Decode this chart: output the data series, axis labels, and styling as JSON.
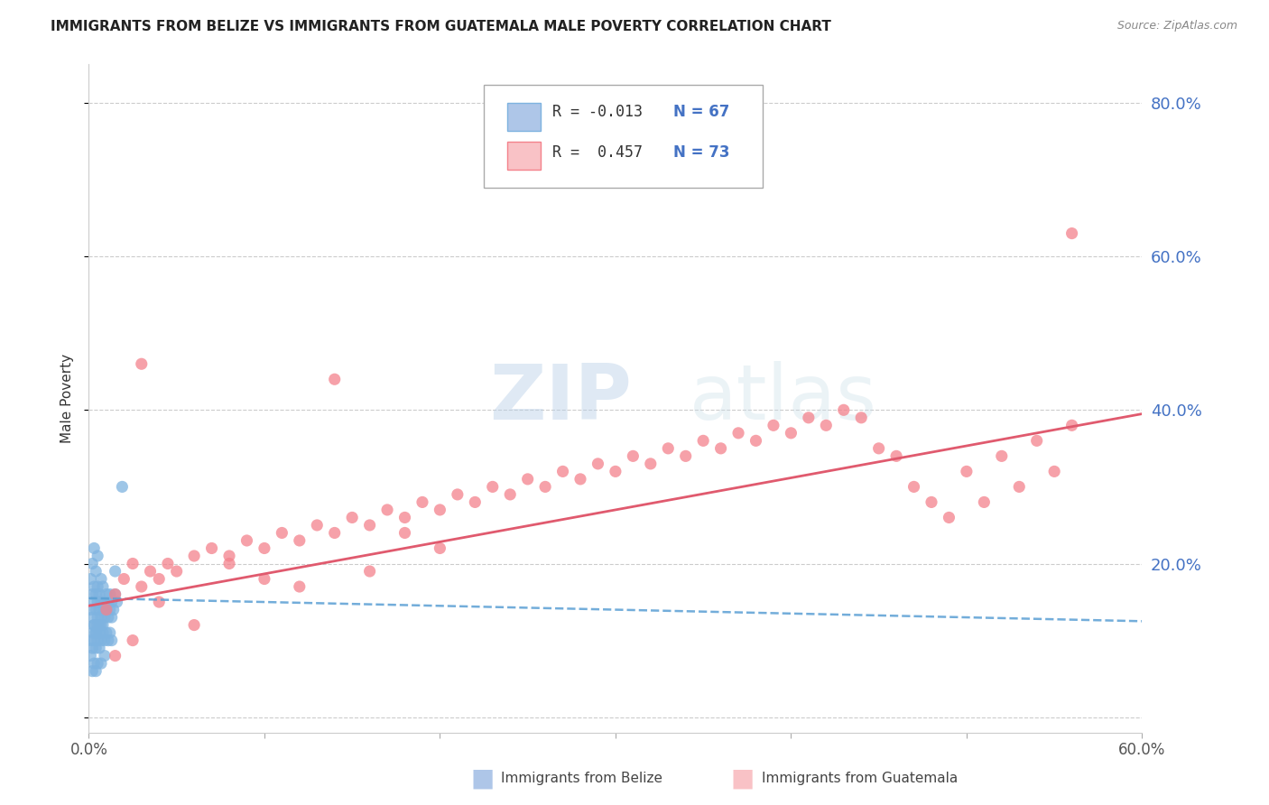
{
  "title": "IMMIGRANTS FROM BELIZE VS IMMIGRANTS FROM GUATEMALA MALE POVERTY CORRELATION CHART",
  "source": "Source: ZipAtlas.com",
  "ylabel": "Male Poverty",
  "xlim": [
    0.0,
    0.6
  ],
  "ylim": [
    -0.02,
    0.85
  ],
  "ytick_positions": [
    0.0,
    0.2,
    0.4,
    0.6,
    0.8
  ],
  "ytick_labels": [
    "",
    "20.0%",
    "40.0%",
    "60.0%",
    "80.0%"
  ],
  "xtick_positions": [
    0.0,
    0.1,
    0.2,
    0.3,
    0.4,
    0.5,
    0.6
  ],
  "xtick_labels": [
    "0.0%",
    "",
    "",
    "",
    "",
    "",
    "60.0%"
  ],
  "belize_R": -0.013,
  "belize_N": 67,
  "guatemala_R": 0.457,
  "guatemala_N": 73,
  "belize_color": "#7eb3e0",
  "guatemala_color": "#f4828c",
  "belize_line_color": "#5a9fd4",
  "guatemala_line_color": "#e05a6e",
  "belize_line_start_y": 0.155,
  "belize_line_end_y": 0.125,
  "guatemala_line_start_y": 0.145,
  "guatemala_line_end_y": 0.395,
  "watermark_text": "ZIPatlas",
  "watermark_color": "#c8dff0",
  "legend_blue_color": "#aec6e8",
  "legend_pink_color": "#f9c2c6",
  "legend_border_blue": "#7eb3e0",
  "legend_border_pink": "#f4828c",
  "right_axis_color": "#4472c4",
  "grid_color": "#cccccc",
  "title_color": "#222222",
  "source_color": "#888888",
  "bottom_legend_label1": "Immigrants from Belize",
  "bottom_legend_label2": "Immigrants from Guatemala",
  "belize_x": [
    0.001,
    0.001,
    0.002,
    0.002,
    0.002,
    0.003,
    0.003,
    0.003,
    0.003,
    0.004,
    0.004,
    0.004,
    0.004,
    0.005,
    0.005,
    0.005,
    0.005,
    0.006,
    0.006,
    0.006,
    0.007,
    0.007,
    0.007,
    0.008,
    0.008,
    0.008,
    0.009,
    0.009,
    0.01,
    0.01,
    0.011,
    0.011,
    0.012,
    0.012,
    0.013,
    0.013,
    0.014,
    0.015,
    0.015,
    0.016,
    0.001,
    0.001,
    0.002,
    0.002,
    0.003,
    0.003,
    0.004,
    0.004,
    0.005,
    0.005,
    0.006,
    0.006,
    0.007,
    0.007,
    0.008,
    0.009,
    0.01,
    0.011,
    0.012,
    0.013,
    0.019,
    0.002,
    0.003,
    0.004,
    0.005,
    0.007,
    0.009
  ],
  "belize_y": [
    0.14,
    0.18,
    0.13,
    0.16,
    0.2,
    0.12,
    0.15,
    0.17,
    0.22,
    0.11,
    0.14,
    0.16,
    0.19,
    0.13,
    0.15,
    0.17,
    0.21,
    0.12,
    0.14,
    0.16,
    0.13,
    0.15,
    0.18,
    0.12,
    0.14,
    0.17,
    0.13,
    0.15,
    0.14,
    0.16,
    0.13,
    0.15,
    0.14,
    0.16,
    0.13,
    0.15,
    0.14,
    0.16,
    0.19,
    0.15,
    0.1,
    0.08,
    0.09,
    0.11,
    0.1,
    0.12,
    0.09,
    0.11,
    0.1,
    0.12,
    0.09,
    0.11,
    0.1,
    0.12,
    0.11,
    0.1,
    0.11,
    0.1,
    0.11,
    0.1,
    0.3,
    0.06,
    0.07,
    0.06,
    0.07,
    0.07,
    0.08
  ],
  "guatemala_x": [
    0.01,
    0.015,
    0.02,
    0.025,
    0.03,
    0.035,
    0.04,
    0.045,
    0.05,
    0.06,
    0.07,
    0.08,
    0.09,
    0.1,
    0.11,
    0.12,
    0.13,
    0.14,
    0.15,
    0.16,
    0.17,
    0.18,
    0.19,
    0.2,
    0.21,
    0.22,
    0.23,
    0.24,
    0.25,
    0.26,
    0.27,
    0.28,
    0.29,
    0.3,
    0.31,
    0.32,
    0.33,
    0.34,
    0.35,
    0.36,
    0.37,
    0.38,
    0.39,
    0.4,
    0.41,
    0.42,
    0.43,
    0.44,
    0.45,
    0.46,
    0.47,
    0.48,
    0.49,
    0.5,
    0.51,
    0.52,
    0.53,
    0.54,
    0.55,
    0.56,
    0.015,
    0.025,
    0.04,
    0.06,
    0.08,
    0.1,
    0.12,
    0.14,
    0.16,
    0.18,
    0.2,
    0.56,
    0.03
  ],
  "guatemala_y": [
    0.14,
    0.16,
    0.18,
    0.2,
    0.17,
    0.19,
    0.18,
    0.2,
    0.19,
    0.21,
    0.22,
    0.21,
    0.23,
    0.22,
    0.24,
    0.23,
    0.25,
    0.24,
    0.26,
    0.25,
    0.27,
    0.26,
    0.28,
    0.27,
    0.29,
    0.28,
    0.3,
    0.29,
    0.31,
    0.3,
    0.32,
    0.31,
    0.33,
    0.32,
    0.34,
    0.33,
    0.35,
    0.34,
    0.36,
    0.35,
    0.37,
    0.36,
    0.38,
    0.37,
    0.39,
    0.38,
    0.4,
    0.39,
    0.35,
    0.34,
    0.3,
    0.28,
    0.26,
    0.32,
    0.28,
    0.34,
    0.3,
    0.36,
    0.32,
    0.38,
    0.08,
    0.1,
    0.15,
    0.12,
    0.2,
    0.18,
    0.17,
    0.44,
    0.19,
    0.24,
    0.22,
    0.63,
    0.46
  ]
}
